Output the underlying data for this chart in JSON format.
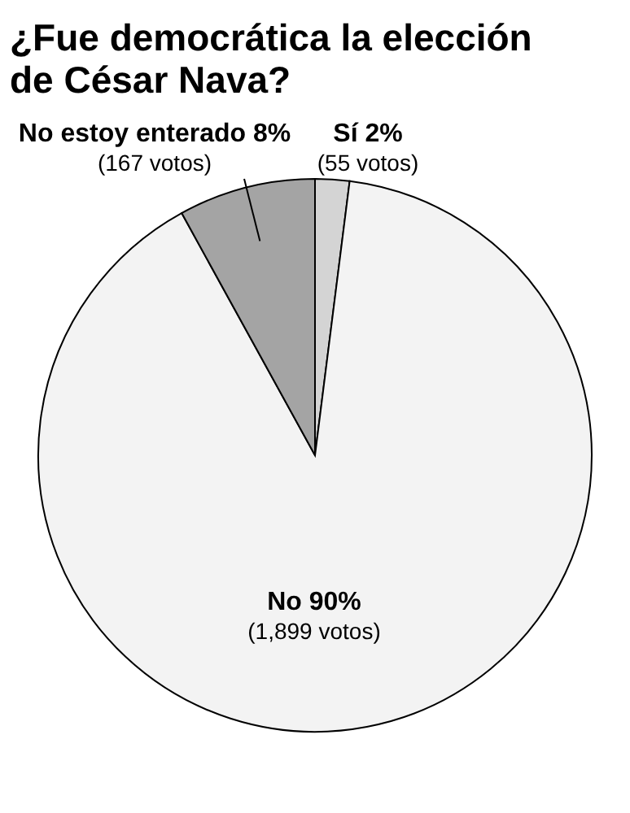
{
  "chart_data": {
    "type": "pie",
    "title": "¿Fue democrática la elección de César Nava?",
    "categories": [
      "Sí",
      "No",
      "No estoy enterado"
    ],
    "values": [
      2,
      90,
      8
    ],
    "colors": [
      "#d4d4d4",
      "#f3f3f3",
      "#a4a4a4"
    ],
    "value_labels": [
      "2%",
      "90%",
      "8%"
    ],
    "annotations": [
      "(55 votos)",
      "(1,899 votos)",
      "(167 votos)"
    ]
  }
}
